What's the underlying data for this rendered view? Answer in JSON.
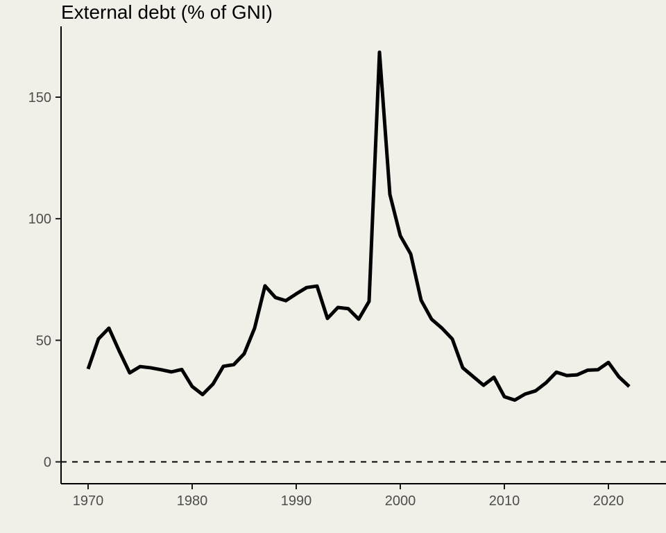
{
  "title": "External debt (% of GNI)",
  "colors": {
    "background": "#F0EFE8",
    "axis_text": "#4D4D4D",
    "axis_line": "#000000",
    "series_line": "#000000"
  },
  "chart_data": {
    "type": "line",
    "title": "External debt (% of GNI)",
    "xlabel": "",
    "ylabel": "",
    "series_name": "External debt (% of GNI)",
    "x": [
      1970,
      1971,
      1972,
      1973,
      1974,
      1975,
      1976,
      1977,
      1978,
      1979,
      1980,
      1981,
      1982,
      1983,
      1984,
      1985,
      1986,
      1987,
      1988,
      1989,
      1990,
      1991,
      1992,
      1993,
      1994,
      1995,
      1996,
      1997,
      1998,
      1999,
      2000,
      2001,
      2002,
      2003,
      2004,
      2005,
      2006,
      2007,
      2008,
      2009,
      2010,
      2011,
      2012,
      2013,
      2014,
      2015,
      2016,
      2017,
      2018,
      2019,
      2020,
      2021,
      2022
    ],
    "values": [
      38.2,
      50.6,
      55.0,
      45.5,
      36.6,
      39.2,
      38.7,
      37.9,
      37.0,
      38.0,
      31.0,
      27.7,
      32.0,
      39.3,
      40.0,
      44.5,
      55.0,
      72.4,
      67.6,
      66.3,
      69.1,
      71.7,
      72.3,
      59.0,
      63.5,
      63.0,
      58.7,
      66.0,
      168.5,
      110.0,
      93.0,
      85.5,
      66.5,
      58.7,
      55.0,
      50.5,
      38.7,
      35.1,
      31.5,
      34.8,
      26.8,
      25.4,
      27.9,
      29.2,
      32.5,
      36.9,
      35.5,
      35.8,
      37.7,
      37.9,
      40.9,
      35.0,
      31.0
    ],
    "x_ticks": [
      1970,
      1980,
      1990,
      2000,
      2010,
      2020
    ],
    "y_ticks": [
      0,
      50,
      100,
      150
    ],
    "xlim": [
      1967.4,
      2025.5
    ],
    "ylim": [
      -9,
      180
    ],
    "grid": false,
    "legend": false,
    "line_width": 5,
    "annotations": [
      {
        "type": "hline",
        "y": 0,
        "style": "dashed"
      }
    ]
  }
}
